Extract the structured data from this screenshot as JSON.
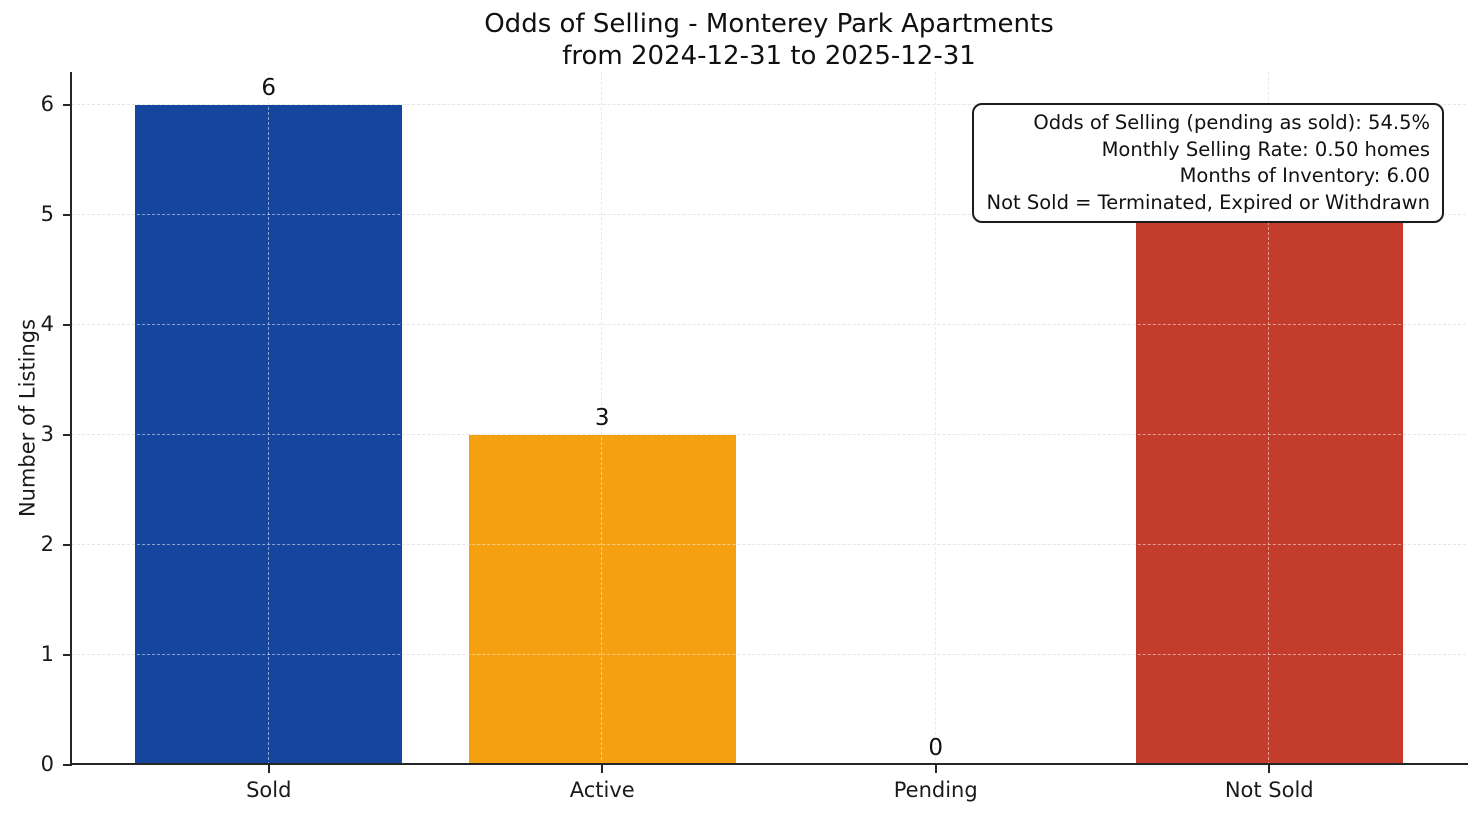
{
  "chart_data": {
    "type": "bar",
    "title": "Odds of Selling - Monterey Park Apartments",
    "subtitle": "from 2024-12-31 to 2025-12-31",
    "categories": [
      "Sold",
      "Active",
      "Pending",
      "Not Sold"
    ],
    "values": [
      6,
      3,
      0,
      5
    ],
    "value_labels": [
      "6",
      "3",
      "0",
      "5"
    ],
    "bar_colors": [
      "#15459C",
      "#F4A011",
      null,
      "#C43C2B"
    ],
    "ylabel": "Number of Listings",
    "xlabel": "",
    "ylim": [
      0,
      6.3
    ],
    "yticks": [
      0,
      1,
      2,
      3,
      4,
      5,
      6
    ],
    "grid": true,
    "grid_style": "dashed",
    "legend_position": "none",
    "annotation": {
      "position": "top-right",
      "lines": [
        "Odds of Selling (pending as sold): 54.5%",
        "Monthly Selling Rate: 0.50 homes",
        "Months of Inventory: 6.00",
        "Not Sold = Terminated, Expired or Withdrawn"
      ]
    }
  }
}
